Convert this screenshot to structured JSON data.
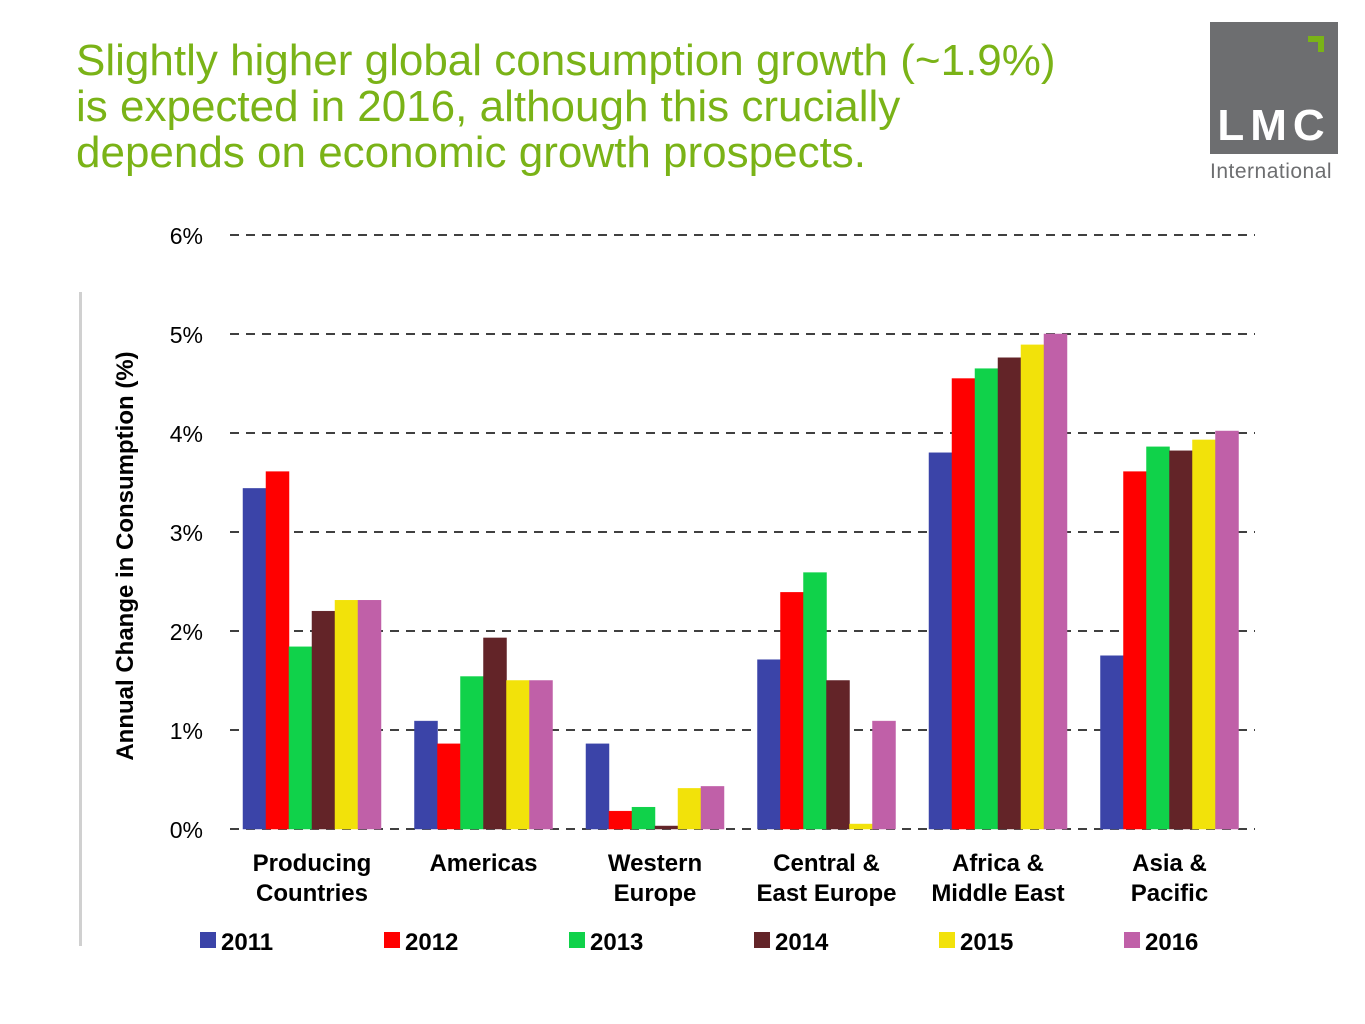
{
  "slide": {
    "title_lines": [
      "Slightly higher global consumption growth (~1.9%)",
      "is expected in 2016, although this crucially",
      "depends on economic growth prospects."
    ],
    "logo": {
      "text": "LMC",
      "subtext": "International",
      "box_color": "#6d6e70",
      "accent_color": "#7ab317"
    }
  },
  "chart_data": {
    "type": "bar",
    "title": "",
    "xlabel": "",
    "ylabel": "Annual Change in Consumption  (%)",
    "ylim": [
      0,
      6
    ],
    "yticks": [
      "0%",
      "1%",
      "2%",
      "3%",
      "4%",
      "5%",
      "6%"
    ],
    "grid": true,
    "legend_position": "bottom",
    "categories": [
      [
        "Producing",
        "Countries"
      ],
      [
        "Americas"
      ],
      [
        "Western",
        "Europe"
      ],
      [
        "Central &",
        "East Europe"
      ],
      [
        "Africa &",
        "Middle East"
      ],
      [
        "Asia &",
        "Pacific"
      ]
    ],
    "series": [
      {
        "name": "2011",
        "color": "#3b44a8",
        "values": [
          3.44,
          1.09,
          0.86,
          1.71,
          3.8,
          1.75
        ]
      },
      {
        "name": "2012",
        "color": "#ff0000",
        "values": [
          3.61,
          0.86,
          0.18,
          2.39,
          4.55,
          3.61
        ]
      },
      {
        "name": "2013",
        "color": "#10d24a",
        "values": [
          1.84,
          1.54,
          0.22,
          2.59,
          4.65,
          3.86
        ]
      },
      {
        "name": "2014",
        "color": "#632428",
        "values": [
          2.2,
          1.93,
          0.03,
          1.5,
          4.76,
          3.82
        ]
      },
      {
        "name": "2015",
        "color": "#f2e20a",
        "values": [
          2.31,
          1.5,
          0.41,
          0.05,
          4.89,
          3.93
        ]
      },
      {
        "name": "2016",
        "color": "#c060a8",
        "values": [
          2.31,
          1.5,
          0.43,
          1.09,
          5.0,
          4.02
        ]
      }
    ]
  }
}
